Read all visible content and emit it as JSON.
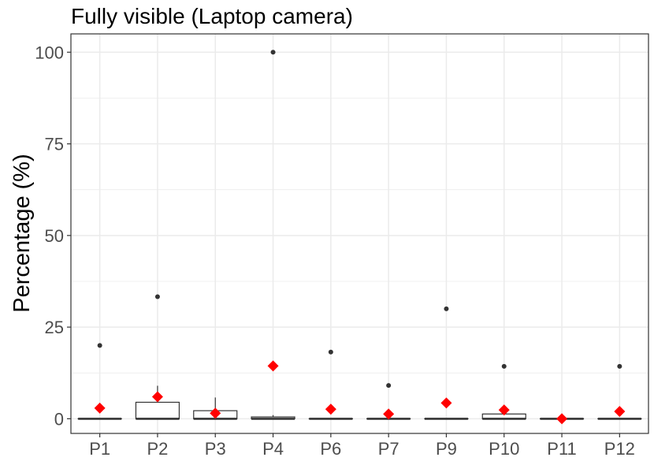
{
  "chart_data": {
    "type": "box",
    "title": "Fully visible (Laptop camera)",
    "xlabel": "",
    "ylabel": "Percentage (%)",
    "ylim": [
      -4,
      105
    ],
    "yticks": [
      0,
      25,
      50,
      75,
      100
    ],
    "grid": true,
    "legend": "none",
    "mean_marker": "red diamond",
    "categories": [
      "P1",
      "P2",
      "P3",
      "P4",
      "P6",
      "P7",
      "P9",
      "P10",
      "P11",
      "P12"
    ],
    "boxes": [
      {
        "category": "P1",
        "min": 0,
        "q1": 0,
        "median": 0,
        "q3": 0,
        "max": 0,
        "mean": 2.9,
        "outliers": [
          20
        ]
      },
      {
        "category": "P2",
        "min": 0,
        "q1": 0,
        "median": 0,
        "q3": 4.5,
        "max": 9,
        "mean": 6.0,
        "outliers": [
          33.3
        ]
      },
      {
        "category": "P3",
        "min": 0,
        "q1": 0,
        "median": 0,
        "q3": 2.2,
        "max": 5.8,
        "mean": 1.5,
        "outliers": []
      },
      {
        "category": "P4",
        "min": 0,
        "q1": 0,
        "median": 0,
        "q3": 0.5,
        "max": 1.0,
        "mean": 14.4,
        "outliers": [
          100
        ]
      },
      {
        "category": "P6",
        "min": 0,
        "q1": 0,
        "median": 0,
        "q3": 0,
        "max": 0,
        "mean": 2.6,
        "outliers": [
          18.2
        ]
      },
      {
        "category": "P7",
        "min": 0,
        "q1": 0,
        "median": 0,
        "q3": 0,
        "max": 0,
        "mean": 1.3,
        "outliers": [
          9.1
        ]
      },
      {
        "category": "P9",
        "min": 0,
        "q1": 0,
        "median": 0,
        "q3": 0,
        "max": 0,
        "mean": 4.3,
        "outliers": [
          30
        ]
      },
      {
        "category": "P10",
        "min": 0,
        "q1": 0,
        "median": 0,
        "q3": 1.3,
        "max": 1.3,
        "mean": 2.4,
        "outliers": [
          14.3
        ]
      },
      {
        "category": "P11",
        "min": 0,
        "q1": 0,
        "median": 0,
        "q3": 0,
        "max": 0,
        "mean": 0,
        "outliers": []
      },
      {
        "category": "P12",
        "min": 0,
        "q1": 0,
        "median": 0,
        "q3": 0,
        "max": 0,
        "mean": 2.0,
        "outliers": [
          14.3
        ]
      }
    ],
    "colors": {
      "mean": "#ff0000",
      "box": "#333333",
      "outlier": "#333333",
      "grid": "#ebebeb",
      "frame": "#333333"
    }
  }
}
